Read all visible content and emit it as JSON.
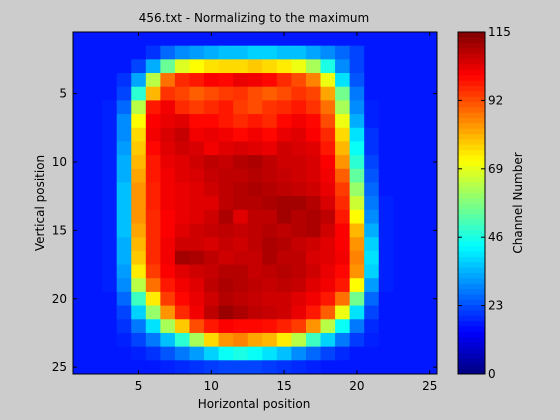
{
  "chart_data": {
    "type": "heatmap",
    "title": "456.txt - Normalizing to the maximum",
    "xlabel": "Horizontal position",
    "ylabel": "Vertical position",
    "colorbar_label": "Channel Number",
    "xlim": [
      0.5,
      25.5
    ],
    "ylim": [
      0.5,
      25.5
    ],
    "y_direction": "reversed",
    "x_ticks": [
      5,
      10,
      15,
      20,
      25
    ],
    "y_ticks": [
      5,
      10,
      15,
      20,
      25
    ],
    "colorbar_range": [
      0,
      115
    ],
    "colorbar_ticks": [
      0,
      23,
      46,
      69,
      92,
      115
    ],
    "colormap": "jet",
    "grid": false,
    "values": [
      [
        17,
        17,
        17,
        17,
        17,
        17,
        17,
        17,
        17,
        17,
        17,
        17,
        17,
        17,
        17,
        17,
        17,
        17,
        17,
        17,
        17,
        17,
        17,
        17,
        17
      ],
      [
        17,
        17,
        17,
        17,
        17,
        20,
        26,
        30,
        32,
        34,
        36,
        36,
        38,
        38,
        36,
        36,
        33,
        30,
        26,
        22,
        17,
        17,
        17,
        17,
        17
      ],
      [
        17,
        17,
        17,
        17,
        22,
        34,
        55,
        68,
        72,
        75,
        76,
        76,
        78,
        76,
        74,
        70,
        62,
        46,
        30,
        22,
        17,
        17,
        17,
        17,
        17
      ],
      [
        17,
        17,
        17,
        20,
        33,
        64,
        88,
        96,
        98,
        101,
        100,
        103,
        102,
        100,
        96,
        92,
        86,
        70,
        40,
        24,
        17,
        17,
        17,
        17,
        17
      ],
      [
        17,
        17,
        17,
        22,
        48,
        80,
        95,
        93,
        90,
        92,
        94,
        95,
        92,
        90,
        92,
        95,
        93,
        82,
        56,
        28,
        17,
        17,
        17,
        17,
        17
      ],
      [
        17,
        17,
        18,
        26,
        64,
        98,
        102,
        96,
        94,
        96,
        98,
        94,
        92,
        95,
        96,
        98,
        95,
        88,
        62,
        30,
        18,
        17,
        17,
        17,
        17
      ],
      [
        17,
        17,
        18,
        30,
        72,
        101,
        103,
        104,
        100,
        100,
        98,
        96,
        98,
        96,
        100,
        102,
        100,
        92,
        70,
        34,
        18,
        17,
        17,
        17,
        17
      ],
      [
        17,
        17,
        18,
        30,
        76,
        102,
        105,
        107,
        102,
        103,
        102,
        100,
        102,
        100,
        103,
        104,
        101,
        96,
        76,
        40,
        20,
        17,
        17,
        17,
        17
      ],
      [
        17,
        17,
        18,
        32,
        78,
        100,
        104,
        106,
        105,
        102,
        104,
        105,
        104,
        103,
        106,
        105,
        104,
        98,
        80,
        44,
        20,
        17,
        17,
        17,
        17
      ],
      [
        17,
        17,
        18,
        34,
        80,
        98,
        103,
        104,
        106,
        108,
        107,
        109,
        110,
        108,
        106,
        106,
        105,
        101,
        84,
        48,
        22,
        17,
        17,
        17,
        17
      ],
      [
        17,
        17,
        18,
        34,
        82,
        98,
        102,
        104,
        105,
        107,
        108,
        108,
        109,
        108,
        107,
        106,
        105,
        102,
        90,
        54,
        24,
        17,
        17,
        17,
        17
      ],
      [
        17,
        17,
        18,
        36,
        84,
        97,
        102,
        103,
        104,
        106,
        108,
        109,
        110,
        109,
        108,
        107,
        106,
        103,
        94,
        60,
        26,
        17,
        17,
        17,
        17
      ],
      [
        17,
        17,
        18,
        36,
        84,
        97,
        102,
        103,
        104,
        104,
        108,
        109,
        109,
        110,
        111,
        111,
        109,
        105,
        96,
        66,
        28,
        18,
        17,
        17,
        17
      ],
      [
        17,
        17,
        18,
        36,
        84,
        96,
        101,
        103,
        104,
        106,
        110,
        104,
        108,
        108,
        111,
        109,
        110,
        108,
        98,
        72,
        30,
        18,
        17,
        17,
        17
      ],
      [
        17,
        17,
        18,
        36,
        82,
        96,
        101,
        104,
        106,
        107,
        108,
        107,
        108,
        109,
        108,
        109,
        110,
        106,
        101,
        80,
        34,
        18,
        17,
        17,
        17
      ],
      [
        17,
        17,
        18,
        34,
        80,
        96,
        102,
        106,
        106,
        105,
        107,
        106,
        108,
        110,
        109,
        107,
        106,
        104,
        101,
        84,
        38,
        18,
        17,
        17,
        17
      ],
      [
        17,
        17,
        18,
        34,
        78,
        96,
        102,
        111,
        110,
        108,
        106,
        107,
        107,
        110,
        108,
        108,
        105,
        104,
        102,
        86,
        40,
        18,
        17,
        17,
        17
      ],
      [
        17,
        17,
        18,
        32,
        74,
        94,
        101,
        104,
        106,
        107,
        109,
        109,
        107,
        108,
        109,
        108,
        106,
        103,
        100,
        84,
        38,
        18,
        17,
        17,
        17
      ],
      [
        17,
        17,
        18,
        30,
        64,
        88,
        98,
        102,
        104,
        108,
        110,
        109,
        108,
        107,
        108,
        107,
        104,
        102,
        98,
        72,
        32,
        18,
        17,
        17,
        17
      ],
      [
        17,
        17,
        17,
        26,
        50,
        74,
        94,
        100,
        103,
        106,
        109,
        108,
        107,
        106,
        106,
        104,
        102,
        98,
        88,
        56,
        26,
        17,
        17,
        17,
        17
      ],
      [
        17,
        17,
        17,
        22,
        38,
        60,
        84,
        96,
        102,
        108,
        112,
        110,
        108,
        107,
        106,
        103,
        98,
        90,
        70,
        40,
        22,
        17,
        17,
        17,
        17
      ],
      [
        17,
        17,
        17,
        20,
        28,
        40,
        62,
        78,
        92,
        98,
        101,
        100,
        100,
        99,
        97,
        94,
        84,
        64,
        44,
        28,
        19,
        17,
        17,
        17,
        17
      ],
      [
        17,
        17,
        17,
        18,
        22,
        28,
        36,
        48,
        62,
        76,
        84,
        86,
        82,
        80,
        74,
        64,
        50,
        38,
        28,
        21,
        18,
        17,
        17,
        17,
        17
      ],
      [
        17,
        17,
        17,
        17,
        18,
        20,
        24,
        28,
        32,
        38,
        44,
        46,
        44,
        40,
        36,
        30,
        26,
        22,
        19,
        17,
        17,
        17,
        17,
        17,
        17
      ],
      [
        17,
        17,
        17,
        17,
        17,
        17,
        18,
        19,
        20,
        21,
        22,
        22,
        22,
        21,
        20,
        19,
        18,
        17,
        17,
        17,
        17,
        17,
        17,
        17,
        17
      ]
    ]
  }
}
